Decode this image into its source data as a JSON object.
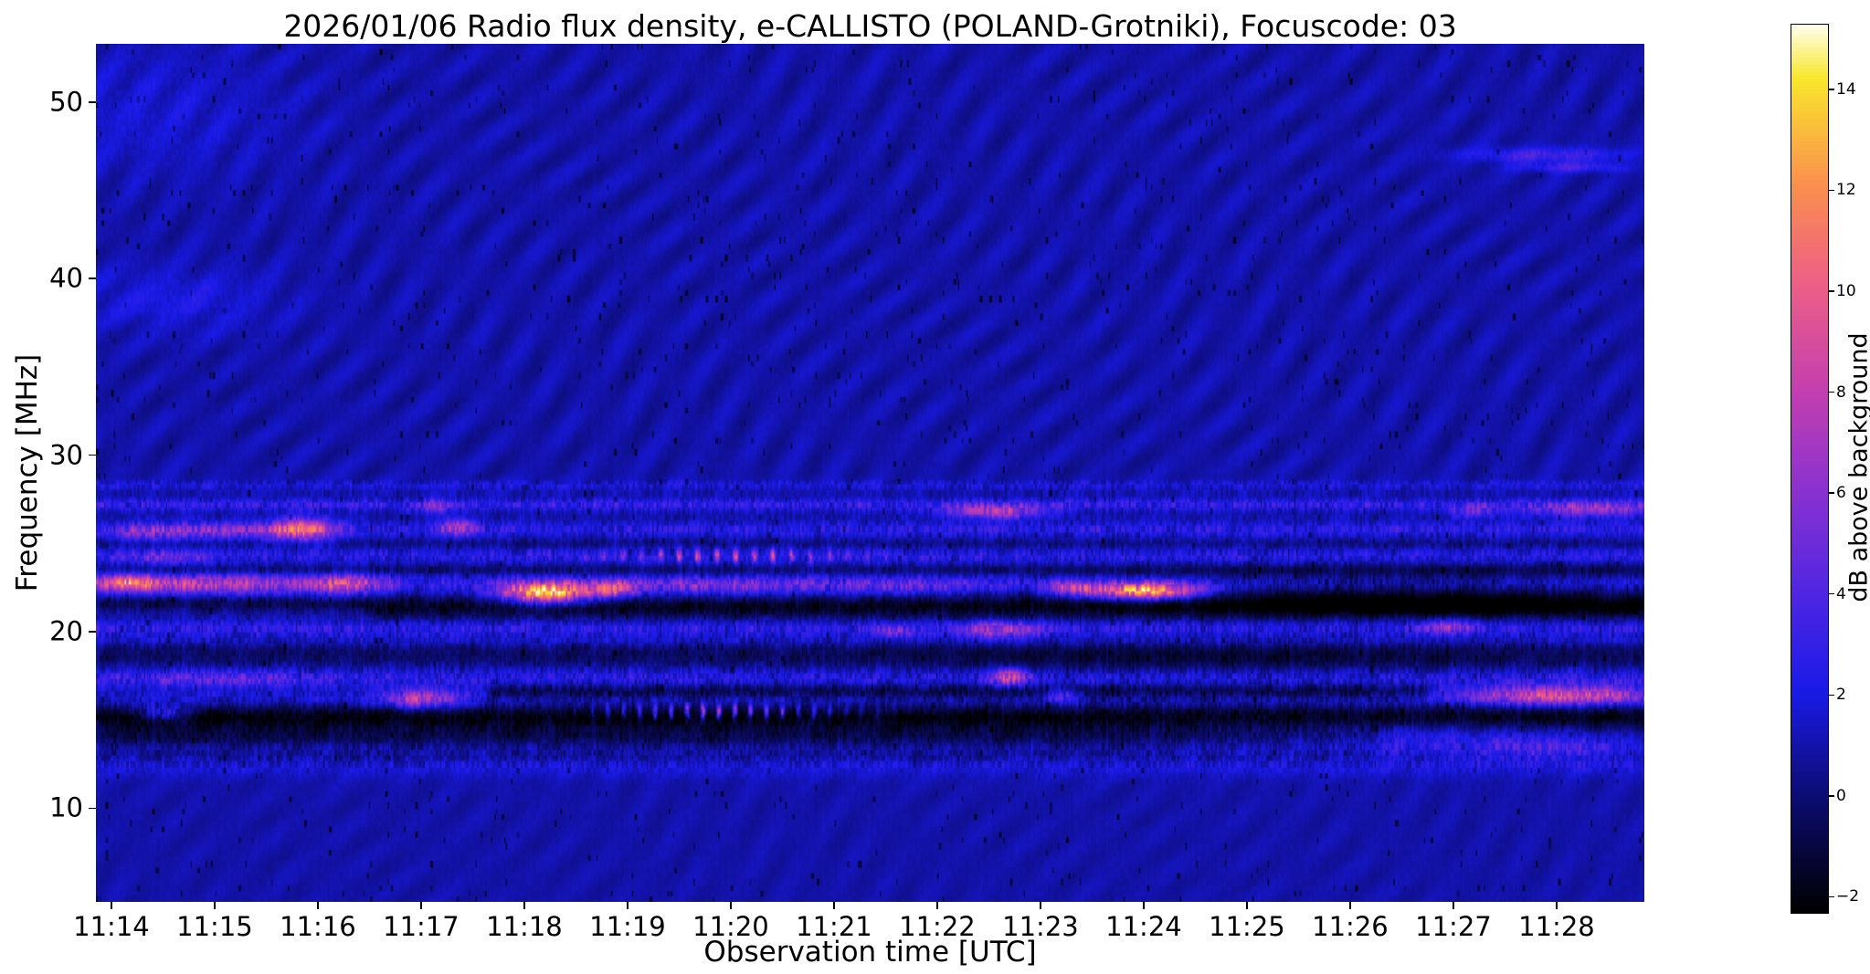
{
  "chart_data": {
    "type": "heatmap",
    "title": "2026/01/06  Radio flux density, e-CALLISTO (POLAND-Grotniki), Focuscode: 03",
    "xlabel": "Observation time [UTC]",
    "ylabel": "Frequency [MHz]",
    "x_ticks": [
      {
        "label": "11:14",
        "minute": 14
      },
      {
        "label": "11:15",
        "minute": 15
      },
      {
        "label": "11:16",
        "minute": 16
      },
      {
        "label": "11:17",
        "minute": 17
      },
      {
        "label": "11:18",
        "minute": 18
      },
      {
        "label": "11:19",
        "minute": 19
      },
      {
        "label": "11:20",
        "minute": 20
      },
      {
        "label": "11:21",
        "minute": 21
      },
      {
        "label": "11:22",
        "minute": 22
      },
      {
        "label": "11:23",
        "minute": 23
      },
      {
        "label": "11:24",
        "minute": 24
      },
      {
        "label": "11:25",
        "minute": 25
      },
      {
        "label": "11:26",
        "minute": 26
      },
      {
        "label": "11:27",
        "minute": 27
      },
      {
        "label": "11:28",
        "minute": 28
      }
    ],
    "x_range_minutes": [
      13.85,
      28.85
    ],
    "y_ticks": [
      10,
      20,
      30,
      40,
      50
    ],
    "y_range_mhz": [
      4.7,
      53.3
    ],
    "grid": false,
    "colorbar": {
      "label": "dB above background",
      "ticks": [
        {
          "value": 14,
          "label": "14"
        },
        {
          "value": 12,
          "label": "12"
        },
        {
          "value": 10,
          "label": "10"
        },
        {
          "value": 8,
          "label": "8"
        },
        {
          "value": 6,
          "label": "6"
        },
        {
          "value": 4,
          "label": "4"
        },
        {
          "value": 2,
          "label": "2"
        },
        {
          "value": 0,
          "label": "0"
        },
        {
          "value": -2,
          "label": "−2"
        }
      ],
      "range": [
        -2.3,
        15.3
      ],
      "colormap": [
        [
          0.0,
          "#000000"
        ],
        [
          0.13,
          "#0c0c72"
        ],
        [
          0.25,
          "#1a1ae8"
        ],
        [
          0.36,
          "#5026e2"
        ],
        [
          0.48,
          "#8c32cf"
        ],
        [
          0.59,
          "#c43fae"
        ],
        [
          0.71,
          "#ee5f86"
        ],
        [
          0.82,
          "#fb8f4e"
        ],
        [
          0.94,
          "#f8e72a"
        ],
        [
          1.0,
          "#ffffee"
        ]
      ]
    },
    "spectrogram": {
      "base_db": 1.0,
      "ripple": {
        "amp1": 0.4,
        "amp2": 0.22,
        "f1t": 1.9,
        "f1f": 0.3,
        "m1": 1.8,
        "p1t": 0.13,
        "p1f": 0.045,
        "f2t": 0.85,
        "f2f": 0.12,
        "m2": 2.2,
        "p2t": 0.21,
        "p2f": 0.03,
        "split_mhz": 28.5,
        "upper_gain": 1.0,
        "lower_gain": 0.55
      },
      "texture": {
        "cell_t": 55,
        "cell_f": 3,
        "band_noise": 1.15,
        "bg_noise": 0.3,
        "stripe_noise": 0.55,
        "band_region": [
          12.3,
          28.6
        ],
        "dark_speck_prob": 0.013,
        "dark_speck_amp": 1.8
      },
      "bands": [
        [
          27.2,
          0.22,
          1.9
        ],
        [
          25.8,
          0.28,
          1.5
        ],
        [
          24.3,
          0.28,
          1.4
        ],
        [
          22.7,
          0.33,
          1.6
        ],
        [
          20.2,
          0.3,
          1.6
        ],
        [
          19.5,
          0.25,
          0.8
        ],
        [
          17.4,
          0.38,
          1.5
        ],
        [
          16.2,
          0.3,
          0.9
        ],
        [
          13.3,
          0.3,
          0.5
        ],
        [
          12.4,
          0.45,
          0.9
        ],
        [
          28.3,
          0.18,
          0.9
        ]
      ],
      "dark_bands": [
        [
          21.4,
          0.45,
          -2.6,
          16.4,
          28.9
        ],
        [
          21.6,
          0.3,
          -1.7,
          13.8,
          16.4
        ],
        [
          15.15,
          0.5,
          -2.9,
          13.8,
          28.9
        ],
        [
          16.6,
          0.32,
          -2.0,
          17.6,
          26.7
        ],
        [
          14.05,
          0.45,
          -1.5,
          13.8,
          26.2
        ],
        [
          18.7,
          0.55,
          -1.3,
          13.8,
          28.9
        ],
        [
          23.5,
          0.22,
          -1.1,
          13.8,
          28.9
        ],
        [
          25.0,
          0.18,
          -0.7,
          13.8,
          28.9
        ],
        [
          13.0,
          0.3,
          -0.8,
          13.8,
          28.9
        ]
      ],
      "bursts": [
        [
          14.15,
          22.8,
          0.18,
          0.35,
          6
        ],
        [
          14.9,
          22.7,
          0.85,
          0.4,
          5.5
        ],
        [
          16.3,
          22.7,
          0.25,
          0.4,
          5
        ],
        [
          18.2,
          22.2,
          0.3,
          0.42,
          12.5
        ],
        [
          18.85,
          22.4,
          0.18,
          0.35,
          6
        ],
        [
          19.9,
          22.6,
          0.8,
          0.35,
          3.2
        ],
        [
          21.8,
          22.6,
          0.5,
          0.35,
          2.4
        ],
        [
          23.3,
          22.5,
          0.18,
          0.3,
          5
        ],
        [
          24.0,
          22.3,
          0.38,
          0.33,
          12.5
        ],
        [
          14.3,
          25.6,
          0.25,
          0.35,
          3
        ],
        [
          15.05,
          25.7,
          0.45,
          0.35,
          3.5
        ],
        [
          15.85,
          25.8,
          0.22,
          0.45,
          8
        ],
        [
          17.35,
          25.9,
          0.13,
          0.35,
          5
        ],
        [
          17.15,
          27.1,
          0.1,
          0.3,
          3.5
        ],
        [
          22.55,
          26.8,
          0.33,
          0.28,
          6.5
        ],
        [
          27.2,
          26.8,
          0.15,
          0.25,
          3.5
        ],
        [
          28.35,
          26.9,
          0.45,
          0.3,
          4.5
        ],
        [
          14.55,
          24.2,
          0.3,
          0.3,
          3
        ],
        [
          20.0,
          24.3,
          0.85,
          0.28,
          3.8,
          5.5
        ],
        [
          21.6,
          20.0,
          0.12,
          0.25,
          3.5
        ],
        [
          22.6,
          20.1,
          0.3,
          0.33,
          5
        ],
        [
          26.95,
          20.3,
          0.2,
          0.28,
          4.5
        ],
        [
          15.1,
          17.3,
          0.6,
          0.35,
          2.2
        ],
        [
          22.7,
          17.4,
          0.12,
          0.33,
          7.5
        ],
        [
          17.0,
          16.2,
          0.25,
          0.4,
          6
        ],
        [
          23.2,
          16.4,
          0.12,
          0.3,
          4
        ],
        [
          28.05,
          16.4,
          0.65,
          0.38,
          7.5
        ],
        [
          14.5,
          15.4,
          0.15,
          0.3,
          4
        ],
        [
          19.9,
          15.5,
          0.75,
          0.28,
          4.8,
          6.5
        ],
        [
          14.6,
          38.8,
          0.7,
          1.3,
          1.1
        ],
        [
          14.4,
          49.5,
          0.9,
          2.5,
          0.8
        ],
        [
          27.9,
          47.0,
          0.55,
          0.3,
          2.6
        ],
        [
          28.15,
          46.3,
          0.35,
          0.2,
          2.4
        ],
        [
          26.3,
          14.0,
          1.3,
          0.8,
          1.4
        ],
        [
          27.9,
          13.4,
          0.6,
          0.5,
          2.2
        ],
        [
          26.6,
          22.2,
          1.9,
          0.9,
          -2.2
        ],
        [
          24.5,
          18.4,
          2.2,
          0.8,
          -1.0
        ]
      ]
    }
  }
}
